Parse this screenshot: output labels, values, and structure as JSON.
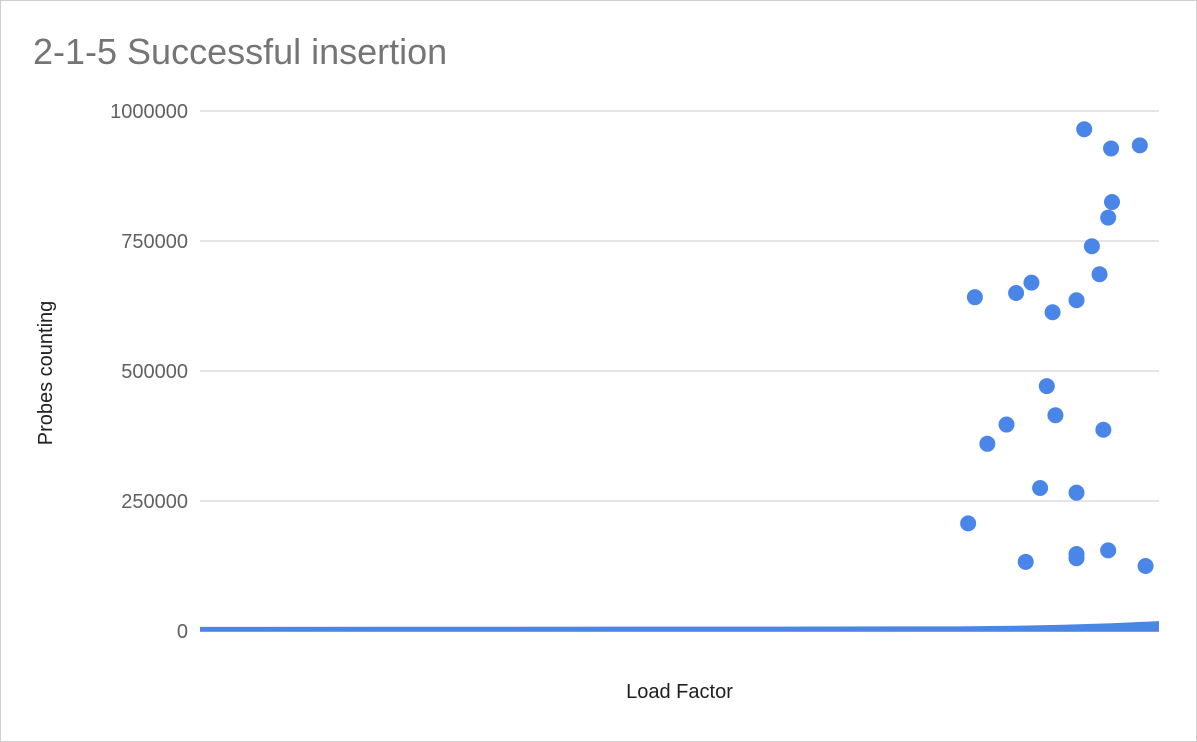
{
  "chart_data": {
    "type": "scatter",
    "title": "2-1-5 Successful insertion",
    "xlabel": "Load Factor",
    "ylabel": "Probes counting",
    "ylim": [
      0,
      1000000
    ],
    "xlim": [
      0,
      1
    ],
    "yticks": [
      "0",
      "250000",
      "500000",
      "750000",
      "1000000"
    ],
    "ytick_values": [
      0,
      250000,
      500000,
      750000,
      1000000
    ],
    "grid": true,
    "legend": "none",
    "color": "#4a86e8",
    "points": [
      [
        0.801,
        207000
      ],
      [
        0.808,
        642000
      ],
      [
        0.821,
        360000
      ],
      [
        0.841,
        397000
      ],
      [
        0.851,
        650000
      ],
      [
        0.861,
        133000
      ],
      [
        0.867,
        670000
      ],
      [
        0.876,
        275000
      ],
      [
        0.883,
        471000
      ],
      [
        0.889,
        613000
      ],
      [
        0.892,
        415000
      ],
      [
        0.914,
        148000
      ],
      [
        0.914,
        140000
      ],
      [
        0.914,
        636000
      ],
      [
        0.914,
        266000
      ],
      [
        0.922,
        965000
      ],
      [
        0.93,
        740000
      ],
      [
        0.938,
        686000
      ],
      [
        0.942,
        387000
      ],
      [
        0.947,
        155000
      ],
      [
        0.947,
        795000
      ],
      [
        0.95,
        928000
      ],
      [
        0.951,
        825000
      ],
      [
        0.98,
        934000
      ],
      [
        0.986,
        125000
      ]
    ],
    "baseline": {
      "x": [
        0,
        0.6,
        0.79,
        0.85,
        0.9,
        0.95,
        1
      ],
      "y": [
        8000,
        8500,
        9000,
        10000,
        12000,
        15000,
        19000
      ]
    }
  }
}
